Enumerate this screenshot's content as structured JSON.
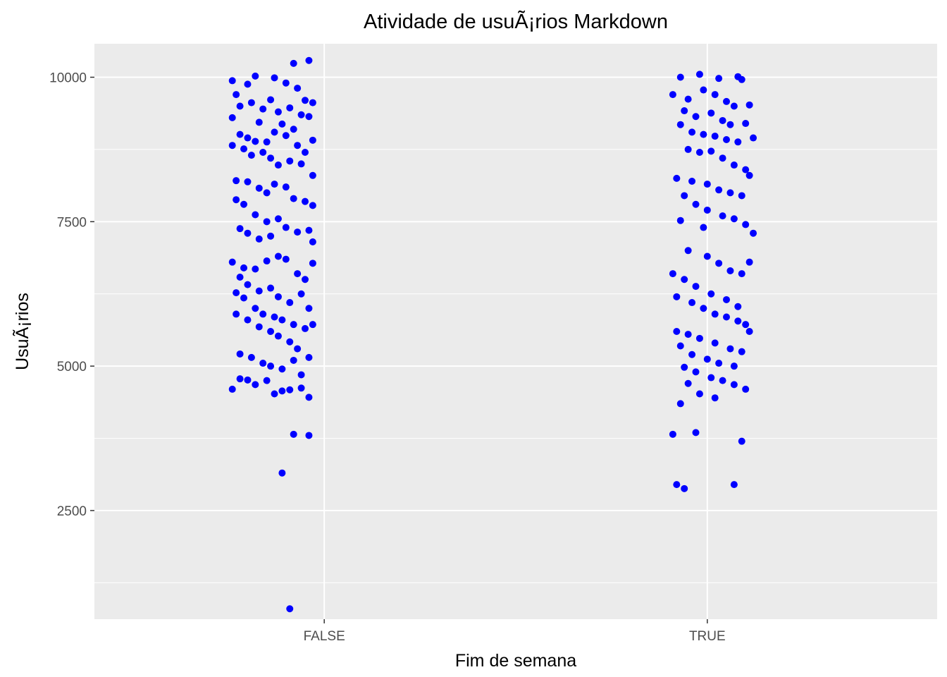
{
  "chart_data": {
    "type": "scatter",
    "title": "Atividade de usuÃ¡rios Markdown",
    "xlabel": "Fim de semana",
    "ylabel": "UsuÃ¡rios",
    "categories": [
      "FALSE",
      "TRUE"
    ],
    "ylim": [
      620,
      10580
    ],
    "yticks": [
      2500,
      5000,
      7500,
      10000
    ],
    "yticklabels": [
      "2500",
      "5000",
      "7500",
      "10000"
    ],
    "grid": true,
    "jitter": true,
    "point_color": "#0000FF",
    "panel_background": "#EBEBEB",
    "series": [
      {
        "category": "FALSE",
        "points": [
          [
            0.92,
            10240
          ],
          [
            0.96,
            10290
          ],
          [
            0.82,
            10020
          ],
          [
            0.76,
            9940
          ],
          [
            0.8,
            9880
          ],
          [
            0.87,
            9990
          ],
          [
            0.9,
            9900
          ],
          [
            0.93,
            9810
          ],
          [
            0.95,
            9600
          ],
          [
            0.97,
            9560
          ],
          [
            0.77,
            9700
          ],
          [
            0.78,
            9500
          ],
          [
            0.81,
            9560
          ],
          [
            0.84,
            9450
          ],
          [
            0.86,
            9610
          ],
          [
            0.88,
            9400
          ],
          [
            0.91,
            9470
          ],
          [
            0.94,
            9350
          ],
          [
            0.76,
            9300
          ],
          [
            0.83,
            9220
          ],
          [
            0.89,
            9190
          ],
          [
            0.92,
            9100
          ],
          [
            0.96,
            9320
          ],
          [
            0.78,
            9010
          ],
          [
            0.8,
            8950
          ],
          [
            0.82,
            8890
          ],
          [
            0.85,
            8880
          ],
          [
            0.87,
            9050
          ],
          [
            0.9,
            8990
          ],
          [
            0.93,
            8820
          ],
          [
            0.95,
            8700
          ],
          [
            0.97,
            8910
          ],
          [
            0.76,
            8820
          ],
          [
            0.79,
            8760
          ],
          [
            0.81,
            8650
          ],
          [
            0.84,
            8700
          ],
          [
            0.86,
            8600
          ],
          [
            0.88,
            8480
          ],
          [
            0.91,
            8550
          ],
          [
            0.94,
            8500
          ],
          [
            0.97,
            8300
          ],
          [
            0.77,
            8210
          ],
          [
            0.8,
            8190
          ],
          [
            0.83,
            8080
          ],
          [
            0.85,
            8000
          ],
          [
            0.87,
            8150
          ],
          [
            0.9,
            8100
          ],
          [
            0.92,
            7900
          ],
          [
            0.95,
            7850
          ],
          [
            0.97,
            7780
          ],
          [
            0.77,
            7880
          ],
          [
            0.79,
            7800
          ],
          [
            0.82,
            7620
          ],
          [
            0.85,
            7500
          ],
          [
            0.88,
            7550
          ],
          [
            0.9,
            7400
          ],
          [
            0.93,
            7320
          ],
          [
            0.96,
            7350
          ],
          [
            0.97,
            7150
          ],
          [
            0.78,
            7380
          ],
          [
            0.8,
            7300
          ],
          [
            0.83,
            7200
          ],
          [
            0.86,
            7250
          ],
          [
            0.76,
            6800
          ],
          [
            0.79,
            6700
          ],
          [
            0.82,
            6680
          ],
          [
            0.85,
            6820
          ],
          [
            0.88,
            6900
          ],
          [
            0.9,
            6850
          ],
          [
            0.93,
            6600
          ],
          [
            0.95,
            6500
          ],
          [
            0.97,
            6780
          ],
          [
            0.78,
            6540
          ],
          [
            0.8,
            6410
          ],
          [
            0.83,
            6300
          ],
          [
            0.86,
            6350
          ],
          [
            0.88,
            6200
          ],
          [
            0.91,
            6100
          ],
          [
            0.94,
            6250
          ],
          [
            0.96,
            6000
          ],
          [
            0.77,
            6270
          ],
          [
            0.79,
            6180
          ],
          [
            0.82,
            6000
          ],
          [
            0.84,
            5900
          ],
          [
            0.87,
            5850
          ],
          [
            0.89,
            5800
          ],
          [
            0.92,
            5720
          ],
          [
            0.95,
            5650
          ],
          [
            0.97,
            5720
          ],
          [
            0.77,
            5900
          ],
          [
            0.8,
            5800
          ],
          [
            0.83,
            5680
          ],
          [
            0.86,
            5600
          ],
          [
            0.88,
            5520
          ],
          [
            0.91,
            5420
          ],
          [
            0.93,
            5300
          ],
          [
            0.96,
            5150
          ],
          [
            0.78,
            5210
          ],
          [
            0.81,
            5150
          ],
          [
            0.84,
            5050
          ],
          [
            0.86,
            5000
          ],
          [
            0.89,
            4950
          ],
          [
            0.92,
            5100
          ],
          [
            0.94,
            4850
          ],
          [
            0.78,
            4780
          ],
          [
            0.8,
            4760
          ],
          [
            0.82,
            4680
          ],
          [
            0.85,
            4750
          ],
          [
            0.87,
            4520
          ],
          [
            0.89,
            4570
          ],
          [
            0.91,
            4590
          ],
          [
            0.94,
            4620
          ],
          [
            0.96,
            4460
          ],
          [
            0.76,
            4600
          ],
          [
            0.92,
            3820
          ],
          [
            0.96,
            3800
          ],
          [
            0.89,
            3150
          ],
          [
            0.91,
            800
          ]
        ]
      },
      {
        "category": "TRUE",
        "points": [
          [
            0.93,
            10000
          ],
          [
            0.98,
            10050
          ],
          [
            1.03,
            9980
          ],
          [
            1.09,
            9960
          ],
          [
            1.08,
            10010
          ],
          [
            0.91,
            9700
          ],
          [
            0.95,
            9620
          ],
          [
            0.99,
            9780
          ],
          [
            1.02,
            9700
          ],
          [
            1.05,
            9580
          ],
          [
            1.07,
            9500
          ],
          [
            1.11,
            9520
          ],
          [
            0.94,
            9420
          ],
          [
            0.97,
            9320
          ],
          [
            1.01,
            9380
          ],
          [
            1.04,
            9250
          ],
          [
            1.06,
            9180
          ],
          [
            1.1,
            9200
          ],
          [
            0.93,
            9180
          ],
          [
            0.96,
            9050
          ],
          [
            0.99,
            9010
          ],
          [
            1.02,
            8980
          ],
          [
            1.05,
            8920
          ],
          [
            1.08,
            8880
          ],
          [
            1.12,
            8950
          ],
          [
            0.95,
            8750
          ],
          [
            0.98,
            8700
          ],
          [
            1.01,
            8720
          ],
          [
            1.04,
            8600
          ],
          [
            1.07,
            8480
          ],
          [
            1.1,
            8400
          ],
          [
            0.92,
            8250
          ],
          [
            0.96,
            8200
          ],
          [
            1.0,
            8150
          ],
          [
            1.03,
            8050
          ],
          [
            1.06,
            8000
          ],
          [
            1.09,
            7950
          ],
          [
            1.11,
            8300
          ],
          [
            0.94,
            7950
          ],
          [
            0.97,
            7800
          ],
          [
            1.0,
            7700
          ],
          [
            1.04,
            7600
          ],
          [
            1.07,
            7550
          ],
          [
            1.1,
            7450
          ],
          [
            1.12,
            7300
          ],
          [
            0.93,
            7520
          ],
          [
            0.99,
            7400
          ],
          [
            0.95,
            7000
          ],
          [
            1.0,
            6900
          ],
          [
            1.03,
            6780
          ],
          [
            1.06,
            6650
          ],
          [
            1.09,
            6600
          ],
          [
            1.11,
            6800
          ],
          [
            0.91,
            6600
          ],
          [
            0.94,
            6500
          ],
          [
            0.97,
            6380
          ],
          [
            1.01,
            6250
          ],
          [
            1.05,
            6150
          ],
          [
            1.08,
            6030
          ],
          [
            0.92,
            6200
          ],
          [
            0.96,
            6100
          ],
          [
            0.99,
            6000
          ],
          [
            1.02,
            5900
          ],
          [
            1.05,
            5850
          ],
          [
            1.08,
            5780
          ],
          [
            1.1,
            5720
          ],
          [
            0.92,
            5600
          ],
          [
            0.95,
            5550
          ],
          [
            0.98,
            5480
          ],
          [
            1.02,
            5400
          ],
          [
            1.06,
            5300
          ],
          [
            1.09,
            5250
          ],
          [
            1.11,
            5600
          ],
          [
            0.93,
            5350
          ],
          [
            0.96,
            5200
          ],
          [
            1.0,
            5120
          ],
          [
            1.03,
            5050
          ],
          [
            1.07,
            5000
          ],
          [
            0.94,
            4980
          ],
          [
            0.97,
            4900
          ],
          [
            1.01,
            4800
          ],
          [
            1.04,
            4750
          ],
          [
            1.07,
            4680
          ],
          [
            1.1,
            4600
          ],
          [
            0.95,
            4700
          ],
          [
            0.98,
            4520
          ],
          [
            1.02,
            4450
          ],
          [
            0.93,
            4350
          ],
          [
            0.91,
            3820
          ],
          [
            0.97,
            3850
          ],
          [
            1.09,
            3700
          ],
          [
            0.92,
            2950
          ],
          [
            0.94,
            2880
          ],
          [
            1.07,
            2950
          ]
        ]
      }
    ]
  }
}
